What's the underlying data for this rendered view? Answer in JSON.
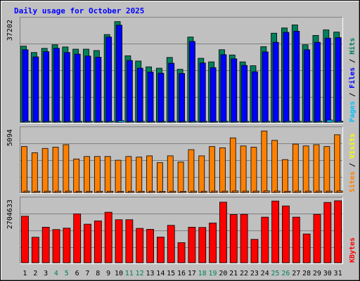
{
  "title": "Daily usage for October 2025",
  "colors": {
    "background": "#c0c0c0",
    "title": "#0000ff",
    "hits": "#00805c",
    "files": "#0000ff",
    "pages": "#00c0ff",
    "visits": "#ffff00",
    "sites": "#ff8000",
    "kbytes": "#ff0000",
    "weekend_label": "#00805c",
    "weekday_label": "#000000",
    "legend_separator": "#000000"
  },
  "chart_data": [
    {
      "type": "bar",
      "panel": "hits-files-pages",
      "max_label": "37202",
      "ylim": [
        0,
        37202
      ],
      "legend": [
        "Pages",
        "Files",
        "Hits"
      ],
      "categories": [
        "1",
        "2",
        "3",
        "4",
        "5",
        "6",
        "7",
        "8",
        "9",
        "10",
        "11",
        "12",
        "13",
        "14",
        "15",
        "16",
        "17",
        "18",
        "19",
        "20",
        "21",
        "22",
        "23",
        "24",
        "25",
        "26",
        "27",
        "28",
        "29",
        "30",
        "31"
      ],
      "series": [
        {
          "name": "Hits",
          "values": [
            27600,
            25300,
            26800,
            28100,
            27300,
            26500,
            26500,
            26000,
            31800,
            36500,
            24100,
            22200,
            20100,
            19600,
            23500,
            19200,
            30900,
            23200,
            21900,
            26300,
            24400,
            21900,
            20500,
            27400,
            32300,
            34200,
            35300,
            28100,
            31500,
            33500,
            32700
          ]
        },
        {
          "name": "Files",
          "values": [
            26300,
            23700,
            25600,
            26800,
            25300,
            24700,
            24000,
            23600,
            30900,
            35200,
            22400,
            19600,
            18200,
            17800,
            21400,
            17700,
            29300,
            21500,
            19800,
            24500,
            23000,
            20600,
            18300,
            25500,
            29000,
            32600,
            33000,
            26300,
            29000,
            30500,
            30700
          ]
        },
        {
          "name": "Pages",
          "values": [
            350,
            310,
            320,
            330,
            320,
            320,
            310,
            310,
            370,
            580,
            310,
            300,
            290,
            290,
            310,
            290,
            350,
            310,
            300,
            320,
            310,
            300,
            290,
            320,
            340,
            360,
            370,
            330,
            350,
            780,
            360
          ]
        }
      ]
    },
    {
      "type": "bar",
      "panel": "visits-sites",
      "max_label": "5094",
      "ylim": [
        0,
        5094
      ],
      "legend": [
        "Sites",
        "Visits"
      ],
      "categories": [
        "1",
        "2",
        "3",
        "4",
        "5",
        "6",
        "7",
        "8",
        "9",
        "10",
        "11",
        "12",
        "13",
        "14",
        "15",
        "16",
        "17",
        "18",
        "19",
        "20",
        "21",
        "22",
        "23",
        "24",
        "25",
        "26",
        "27",
        "28",
        "29",
        "30",
        "31"
      ],
      "series": [
        {
          "name": "Visits",
          "values": [
            3700,
            3200,
            3550,
            3650,
            3850,
            2700,
            2900,
            2900,
            2900,
            2600,
            2900,
            2850,
            2950,
            2400,
            2950,
            2450,
            3450,
            2950,
            3700,
            3600,
            4400,
            3750,
            3650,
            4950,
            4200,
            2650,
            3900,
            3750,
            3850,
            3700,
            4650
          ]
        },
        {
          "name": "Sites",
          "values": [
            110,
            100,
            105,
            108,
            110,
            95,
            97,
            97,
            97,
            92,
            98,
            96,
            99,
            90,
            100,
            91,
            106,
            100,
            110,
            108,
            120,
            111,
            110,
            125,
            115,
            96,
            113,
            110,
            112,
            108,
            122
          ]
        }
      ]
    },
    {
      "type": "bar",
      "panel": "kbytes",
      "max_label": "2704633",
      "ylim": [
        0,
        2704633
      ],
      "legend": [
        "KBytes"
      ],
      "categories": [
        "1",
        "2",
        "3",
        "4",
        "5",
        "6",
        "7",
        "8",
        "9",
        "10",
        "11",
        "12",
        "13",
        "14",
        "15",
        "16",
        "17",
        "18",
        "19",
        "20",
        "21",
        "22",
        "23",
        "24",
        "25",
        "26",
        "27",
        "28",
        "29",
        "30",
        "31"
      ],
      "series": [
        {
          "name": "KBytes",
          "values": [
            1990000,
            1090000,
            1520000,
            1420000,
            1480000,
            2090000,
            1650000,
            1790000,
            2160000,
            1840000,
            1840000,
            1470000,
            1430000,
            1100000,
            1600000,
            860000,
            1520000,
            1510000,
            1700000,
            2590000,
            2060000,
            2070000,
            1000000,
            1950000,
            2640000,
            2430000,
            1950000,
            1230000,
            2070000,
            2580000,
            2650000
          ]
        }
      ]
    }
  ],
  "x_labels": [
    {
      "label": "1",
      "weekend": false
    },
    {
      "label": "2",
      "weekend": false
    },
    {
      "label": "3",
      "weekend": false
    },
    {
      "label": "4",
      "weekend": true
    },
    {
      "label": "5",
      "weekend": true
    },
    {
      "label": "6",
      "weekend": false
    },
    {
      "label": "7",
      "weekend": false
    },
    {
      "label": "8",
      "weekend": false
    },
    {
      "label": "9",
      "weekend": false
    },
    {
      "label": "10",
      "weekend": false
    },
    {
      "label": "11",
      "weekend": true
    },
    {
      "label": "12",
      "weekend": true
    },
    {
      "label": "13",
      "weekend": false
    },
    {
      "label": "14",
      "weekend": false
    },
    {
      "label": "15",
      "weekend": false
    },
    {
      "label": "16",
      "weekend": false
    },
    {
      "label": "17",
      "weekend": false
    },
    {
      "label": "18",
      "weekend": true
    },
    {
      "label": "19",
      "weekend": true
    },
    {
      "label": "20",
      "weekend": false
    },
    {
      "label": "21",
      "weekend": false
    },
    {
      "label": "22",
      "weekend": false
    },
    {
      "label": "23",
      "weekend": false
    },
    {
      "label": "24",
      "weekend": false
    },
    {
      "label": "25",
      "weekend": true
    },
    {
      "label": "26",
      "weekend": true
    },
    {
      "label": "27",
      "weekend": false
    },
    {
      "label": "28",
      "weekend": false
    },
    {
      "label": "29",
      "weekend": false
    },
    {
      "label": "30",
      "weekend": false
    },
    {
      "label": "31",
      "weekend": false
    }
  ]
}
